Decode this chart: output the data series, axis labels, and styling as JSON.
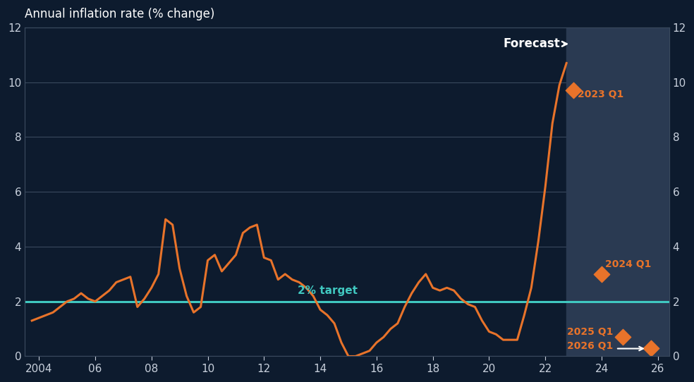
{
  "background_color": "#0d1b2e",
  "line_color": "#e8732a",
  "target_color": "#40c8c0",
  "forecast_shade_color": "#2a3a52",
  "text_color": "#c8d0dc",
  "title": "Annual inflation rate (% change)",
  "ylim": [
    0,
    12
  ],
  "yticks": [
    0,
    2,
    4,
    6,
    8,
    10,
    12
  ],
  "xlim": [
    2003.5,
    2026.4
  ],
  "xticks": [
    2004,
    2006,
    2008,
    2010,
    2012,
    2014,
    2016,
    2018,
    2020,
    2022,
    2024,
    2026
  ],
  "xticklabels": [
    "2004",
    "06",
    "08",
    "10",
    "12",
    "14",
    "16",
    "18",
    "20",
    "22",
    "24",
    "26"
  ],
  "target_level": 2.0,
  "forecast_start": 2022.75,
  "forecast_end": 2026.4,
  "historical_x": [
    2003.75,
    2004.0,
    2004.25,
    2004.5,
    2004.75,
    2005.0,
    2005.25,
    2005.5,
    2005.75,
    2006.0,
    2006.25,
    2006.5,
    2006.75,
    2007.0,
    2007.25,
    2007.5,
    2007.75,
    2008.0,
    2008.25,
    2008.5,
    2008.75,
    2009.0,
    2009.25,
    2009.5,
    2009.75,
    2010.0,
    2010.25,
    2010.5,
    2010.75,
    2011.0,
    2011.25,
    2011.5,
    2011.75,
    2012.0,
    2012.25,
    2012.5,
    2012.75,
    2013.0,
    2013.25,
    2013.5,
    2013.75,
    2014.0,
    2014.25,
    2014.5,
    2014.75,
    2015.0,
    2015.25,
    2015.5,
    2015.75,
    2016.0,
    2016.25,
    2016.5,
    2016.75,
    2017.0,
    2017.25,
    2017.5,
    2017.75,
    2018.0,
    2018.25,
    2018.5,
    2018.75,
    2019.0,
    2019.25,
    2019.5,
    2019.75,
    2020.0,
    2020.25,
    2020.5,
    2020.75,
    2021.0,
    2021.25,
    2021.5,
    2021.75,
    2022.0,
    2022.25,
    2022.5,
    2022.75
  ],
  "historical_y": [
    1.3,
    1.4,
    1.5,
    1.6,
    1.8,
    2.0,
    2.1,
    2.3,
    2.1,
    2.0,
    2.2,
    2.4,
    2.7,
    2.8,
    2.9,
    1.8,
    2.1,
    2.5,
    3.0,
    5.0,
    4.8,
    3.2,
    2.2,
    1.6,
    1.8,
    3.5,
    3.7,
    3.1,
    3.4,
    3.7,
    4.5,
    4.7,
    4.8,
    3.6,
    3.5,
    2.8,
    3.0,
    2.8,
    2.7,
    2.5,
    2.2,
    1.7,
    1.5,
    1.2,
    0.5,
    0.0,
    0.0,
    0.1,
    0.2,
    0.5,
    0.7,
    1.0,
    1.2,
    1.8,
    2.3,
    2.7,
    3.0,
    2.5,
    2.4,
    2.5,
    2.4,
    2.1,
    1.9,
    1.8,
    1.3,
    0.9,
    0.8,
    0.6,
    0.6,
    0.6,
    1.5,
    2.5,
    4.2,
    6.2,
    8.5,
    9.9,
    10.7
  ],
  "forecast_points_x": [
    2023.0,
    2024.0,
    2024.75,
    2025.75
  ],
  "forecast_points_y": [
    9.7,
    3.0,
    0.7,
    0.3
  ],
  "grid_color": "#3a4a5e",
  "spine_color": "#3a4a5e"
}
